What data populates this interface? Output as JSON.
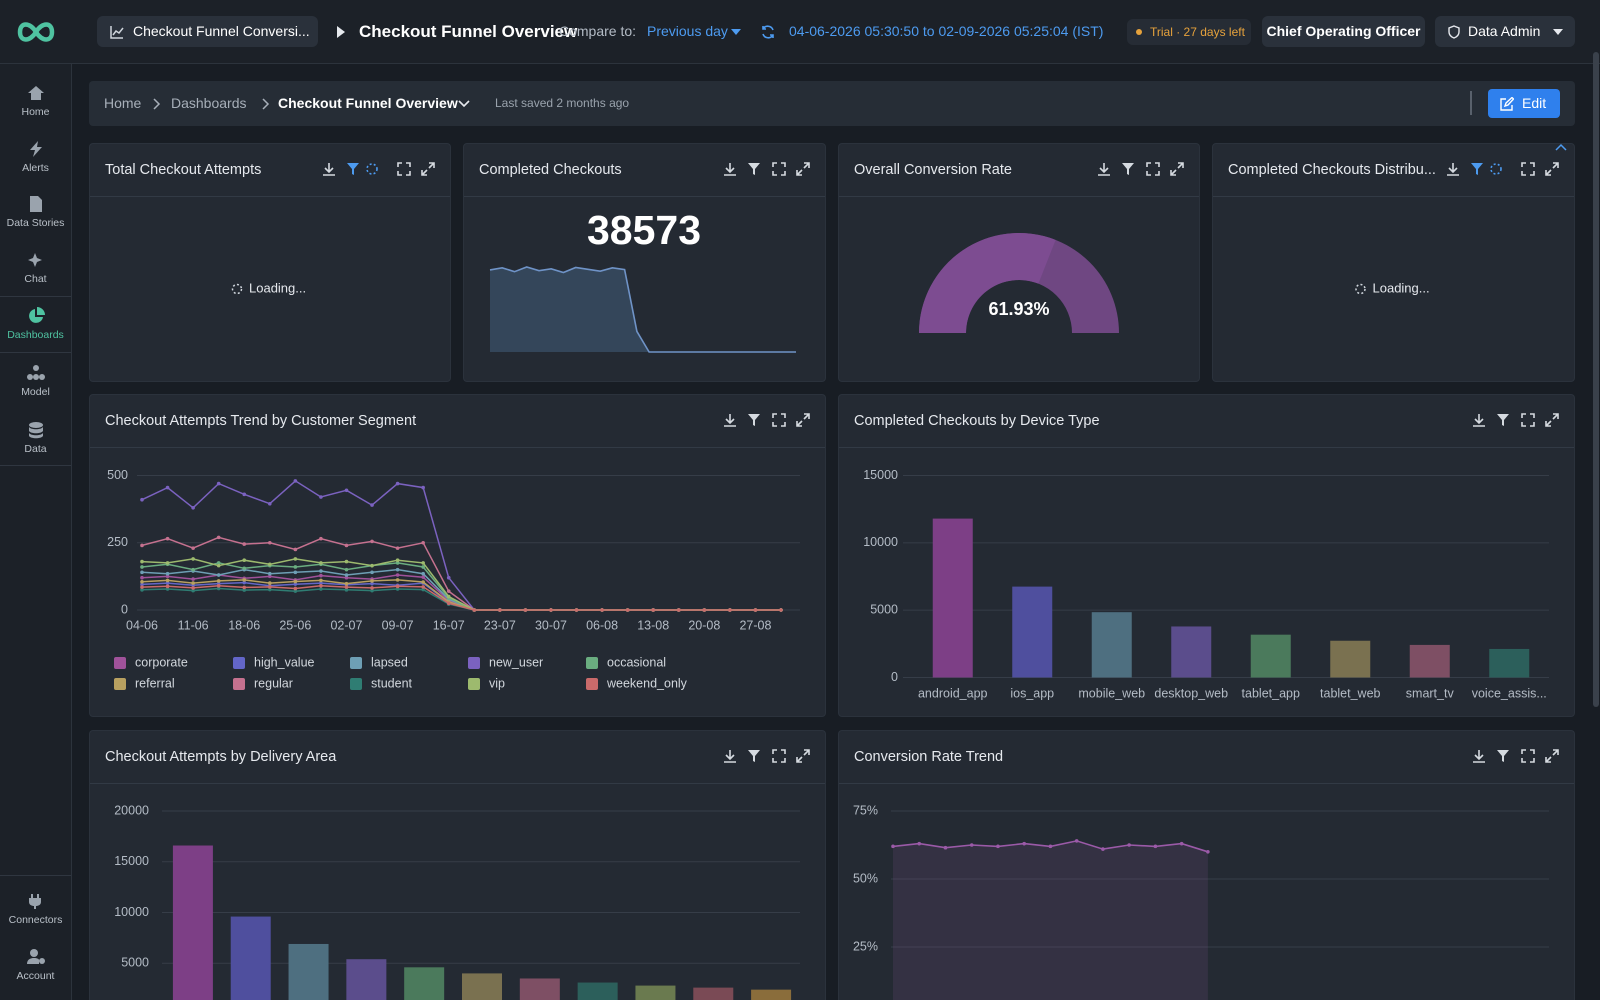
{
  "sidebar": {
    "items": [
      {
        "label": "Home"
      },
      {
        "label": "Alerts"
      },
      {
        "label": "Data Stories"
      },
      {
        "label": "Chat"
      },
      {
        "label": "Dashboards",
        "active": true
      },
      {
        "label": "Model"
      },
      {
        "label": "Data"
      }
    ],
    "bottom": [
      {
        "label": "Connectors"
      },
      {
        "label": "Account"
      }
    ]
  },
  "topbar": {
    "dashboard_tab": "Checkout Funnel Conversi...",
    "title": "Checkout Funnel Overview",
    "compare_label": "Compare to:",
    "compare_value": "Previous day",
    "date_range": "04-06-2026 05:30:50 to 02-09-2026 05:25:04 (IST)",
    "trial": "Trial · 27 days left",
    "role": "Chief Operating Officer",
    "user": "Data Admin"
  },
  "breadcrumb": {
    "items": [
      "Home",
      "Dashboards",
      "Checkout Funnel Overview"
    ],
    "last_saved": "Last saved 2 months ago",
    "edit": "Edit"
  },
  "chart_data": [
    {
      "type": "loading",
      "title": "Total Checkout Attempts",
      "status": "Loading..."
    },
    {
      "type": "kpi",
      "title": "Completed Checkouts",
      "value": 38573,
      "color": "#6f93c7",
      "values": [
        3150,
        3230,
        3080,
        3260,
        3120,
        3190,
        3050,
        3240,
        3170,
        3100,
        3230,
        3160,
        790,
        0,
        0,
        0,
        0,
        0,
        0,
        0,
        0,
        0,
        0,
        0,
        0,
        0
      ]
    },
    {
      "type": "gauge",
      "title": "Overall Conversion Rate",
      "value": 61.93,
      "value_label": "61.93%",
      "color": "#7d4c91"
    },
    {
      "type": "loading",
      "title": "Completed Checkouts Distribu...",
      "status": "Loading..."
    },
    {
      "type": "line",
      "title": "Checkout Attempts Trend by Customer Segment",
      "categories": [
        "04-06",
        null,
        "11-06",
        null,
        "18-06",
        null,
        "25-06",
        null,
        "02-07",
        null,
        "09-07",
        null,
        "16-07",
        null,
        "23-07",
        null,
        "30-07",
        null,
        "06-08",
        null,
        "13-08",
        null,
        "20-08",
        null,
        "27-08",
        null
      ],
      "ylim": [
        0,
        500
      ],
      "yticks": [
        0,
        250,
        500
      ],
      "grid": true,
      "series": [
        {
          "name": "corporate",
          "color": "#a0529a",
          "values": [
            120,
            125,
            115,
            130,
            118,
            125,
            112,
            128,
            120,
            115,
            130,
            122,
            35,
            0,
            0,
            0,
            0,
            0,
            0,
            0,
            0,
            0,
            0,
            0,
            0,
            0
          ]
        },
        {
          "name": "high_value",
          "color": "#6366c8",
          "values": [
            95,
            100,
            92,
            98,
            102,
            90,
            96,
            100,
            94,
            98,
            92,
            100,
            28,
            0,
            0,
            0,
            0,
            0,
            0,
            0,
            0,
            0,
            0,
            0,
            0,
            0
          ]
        },
        {
          "name": "lapsed",
          "color": "#6e9fb5",
          "values": [
            140,
            135,
            145,
            130,
            150,
            135,
            140,
            145,
            130,
            140,
            150,
            135,
            40,
            0,
            0,
            0,
            0,
            0,
            0,
            0,
            0,
            0,
            0,
            0,
            0,
            0
          ]
        },
        {
          "name": "new_user",
          "color": "#7b62c0",
          "values": [
            410,
            455,
            380,
            470,
            430,
            395,
            480,
            420,
            445,
            390,
            470,
            455,
            120,
            0,
            0,
            0,
            0,
            0,
            0,
            0,
            0,
            0,
            0,
            0,
            0,
            0
          ]
        },
        {
          "name": "occasional",
          "color": "#6aad80",
          "values": [
            160,
            170,
            150,
            175,
            155,
            165,
            160,
            170,
            150,
            165,
            175,
            160,
            45,
            0,
            0,
            0,
            0,
            0,
            0,
            0,
            0,
            0,
            0,
            0,
            0,
            0
          ]
        },
        {
          "name": "referral",
          "color": "#b8a060",
          "values": [
            105,
            110,
            100,
            108,
            112,
            100,
            106,
            110,
            98,
            108,
            112,
            104,
            30,
            0,
            0,
            0,
            0,
            0,
            0,
            0,
            0,
            0,
            0,
            0,
            0,
            0
          ]
        },
        {
          "name": "regular",
          "color": "#c5718f",
          "values": [
            240,
            265,
            230,
            270,
            245,
            250,
            225,
            265,
            240,
            255,
            230,
            250,
            70,
            0,
            0,
            0,
            0,
            0,
            0,
            0,
            0,
            0,
            0,
            0,
            0,
            0
          ]
        },
        {
          "name": "student",
          "color": "#2f7d73",
          "values": [
            75,
            78,
            72,
            80,
            74,
            76,
            70,
            78,
            75,
            72,
            78,
            76,
            22,
            0,
            0,
            0,
            0,
            0,
            0,
            0,
            0,
            0,
            0,
            0,
            0,
            0
          ]
        },
        {
          "name": "vip",
          "color": "#9dba6e",
          "values": [
            180,
            175,
            190,
            165,
            185,
            170,
            190,
            175,
            180,
            165,
            185,
            175,
            50,
            0,
            0,
            0,
            0,
            0,
            0,
            0,
            0,
            0,
            0,
            0,
            0,
            0
          ]
        },
        {
          "name": "weekend_only",
          "color": "#c96a6a",
          "values": [
            85,
            88,
            82,
            90,
            84,
            86,
            80,
            90,
            85,
            82,
            88,
            86,
            25,
            0,
            0,
            0,
            0,
            0,
            0,
            0,
            0,
            0,
            0,
            0,
            0,
            0
          ]
        }
      ]
    },
    {
      "type": "bar",
      "title": "Completed Checkouts by Device Type",
      "categories": [
        "android_app",
        "ios_app",
        "mobile_web",
        "desktop_web",
        "tablet_app",
        "tablet_web",
        "smart_tv",
        "voice_assis..."
      ],
      "values": [
        11800,
        6750,
        4850,
        3790,
        3180,
        2730,
        2420,
        2120
      ],
      "colors": [
        "#7d3f86",
        "#4f4f9e",
        "#4e6f80",
        "#5b4d8c",
        "#4b7a5c",
        "#7a7150",
        "#7e4f64",
        "#2c5f5b"
      ],
      "ylim": [
        0,
        15000
      ],
      "yticks": [
        0,
        5000,
        10000,
        15000
      ],
      "grid": true
    },
    {
      "type": "bar",
      "title": "Checkout Attempts by Delivery Area",
      "values": [
        16600,
        9600,
        6900,
        5400,
        4600,
        4000,
        3500,
        3100,
        2800,
        2600,
        2400
      ],
      "colors": [
        "#7d3f86",
        "#4f4f9e",
        "#4e6f80",
        "#5b4d8c",
        "#4b7a5c",
        "#7a7150",
        "#7e4f64",
        "#2c5f5b",
        "#6a7a4f",
        "#7a4a55",
        "#8a6d3b"
      ],
      "ylim": [
        0,
        20000
      ],
      "yticks": [
        5000,
        10000,
        15000,
        20000
      ],
      "grid": true
    },
    {
      "type": "area",
      "title": "Conversion Rate Trend",
      "color": "#9b5aa8",
      "values": [
        62,
        63,
        61.5,
        62.5,
        62,
        63,
        62,
        64,
        61,
        62.5,
        62,
        63,
        60,
        null,
        null,
        null,
        null,
        null,
        null,
        null,
        null,
        null,
        null,
        null,
        null,
        null
      ],
      "ylim": [
        0,
        75
      ],
      "yticks": [
        {
          "value": 25,
          "label": "25%"
        },
        {
          "value": 50,
          "label": "50%"
        },
        {
          "value": 75,
          "label": "75%"
        }
      ],
      "grid": true
    }
  ]
}
